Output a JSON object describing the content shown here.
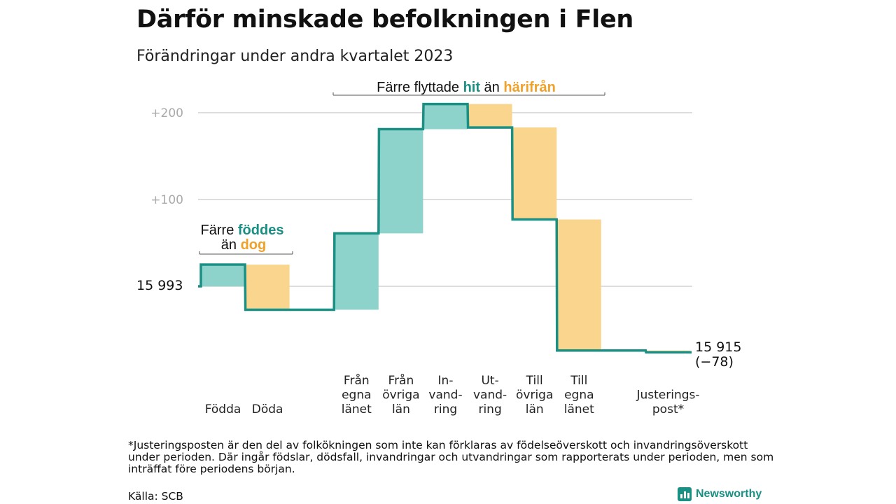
{
  "title": "Därför minskade befolkningen i Flen",
  "subtitle": "Förändringar under andra kvartalet 2023",
  "footnote": "*Justeringsposten är den del av folkökningen som inte kan förklaras av födelseöverskott och invandringsöverskott under perioden. Där ingår födslar, dödsfall, invandringar och utvandringar som rapporterats under perioden, men som inträffat före periodens början.",
  "source": "Källa: SCB",
  "brand": "Newsworthy",
  "colors": {
    "positive": "#8dd3cb",
    "negative": "#f9d58e",
    "line": "#1a8f83",
    "accent_teal": "#1a8f83",
    "accent_orange": "#f0a12a",
    "grid": "#dddddd"
  },
  "chart_data": {
    "type": "waterfall",
    "start_value": 15993,
    "start_label": "15  993",
    "end_value": 15915,
    "end_label": [
      "15 915",
      "(−78)"
    ],
    "y_ticks": [
      {
        "value": 200,
        "label": "+200"
      },
      {
        "value": 100,
        "label": "+100"
      }
    ],
    "grid": true,
    "steps": [
      {
        "label": [
          "Födda"
        ],
        "delta": 25
      },
      {
        "label": [
          "Döda"
        ],
        "delta": -52
      },
      {
        "label": [],
        "delta": 0
      },
      {
        "label": [
          "Från",
          "egna",
          "länet"
        ],
        "delta": 88
      },
      {
        "label": [
          "Från",
          "övriga",
          "län"
        ],
        "delta": 120
      },
      {
        "label": [
          "In-",
          "vand-",
          "ring"
        ],
        "delta": 29
      },
      {
        "label": [
          "Ut-",
          "vand-",
          "ring"
        ],
        "delta": -27
      },
      {
        "label": [
          "Till",
          "övriga",
          "län"
        ],
        "delta": -106
      },
      {
        "label": [
          "Till",
          "egna",
          "länet"
        ],
        "delta": -151
      },
      {
        "label": [],
        "delta": 0
      },
      {
        "label": [
          "Justerings-",
          "post*"
        ],
        "delta": -2
      }
    ],
    "annotations": [
      {
        "parts": [
          "Färre ",
          "födda",
          " än ",
          "döda"
        ],
        "text_parts": [
          "Färre ",
          "föddes",
          "än ",
          "dog"
        ]
      },
      {
        "text_parts": [
          "Färre flyttade ",
          "hit",
          " än ",
          "härifrån"
        ]
      }
    ]
  }
}
